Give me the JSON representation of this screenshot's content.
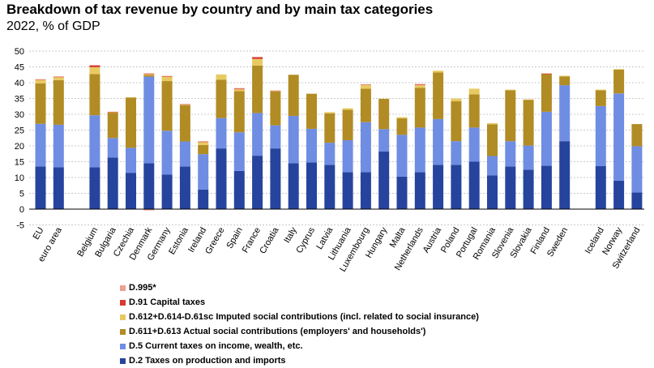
{
  "title": "Breakdown of tax revenue by country and by main tax categories",
  "subtitle": "2022, % of GDP",
  "chart_data": {
    "type": "bar",
    "stacked": true,
    "ylim": [
      -5,
      50
    ],
    "yticks": [
      "-5",
      "0",
      "5",
      "10",
      "15",
      "20",
      "25",
      "30",
      "35",
      "40",
      "45",
      "50"
    ],
    "grid": "horizontal dashed",
    "legend_placement": "bottom",
    "groups": [
      [
        "EU",
        "euro area"
      ],
      [
        "Belgium",
        "Bulgaria",
        "Czechia",
        "Denmark",
        "Germany",
        "Estonia",
        "Ireland",
        "Greece",
        "Spain",
        "France",
        "Croatia",
        "Italy",
        "Cyprus",
        "Latvia",
        "Lithuania",
        "Luxembourg",
        "Hungary",
        "Malta",
        "Netherlands",
        "Austria",
        "Poland",
        "Portugal",
        "Romania",
        "Slovenia",
        "Slovakia",
        "Finland",
        "Sweden"
      ],
      [
        "Iceland",
        "Norway",
        "Switzerland"
      ]
    ],
    "series": [
      {
        "name": "D.2 Taxes on production and imports",
        "color": "#26449e",
        "values": [
          13.5,
          13.2,
          13.2,
          16.3,
          11.5,
          14.5,
          10.9,
          13.5,
          6.2,
          19.2,
          12.1,
          16.9,
          19.2,
          14.5,
          14.8,
          14.0,
          11.7,
          11.7,
          18.2,
          10.3,
          11.7,
          14.0,
          14.0,
          15.0,
          10.7,
          13.5,
          12.5,
          13.7,
          21.5,
          13.6,
          9.0,
          5.3
        ]
      },
      {
        "name": "D.5 Current taxes on income, wealth, etc.",
        "color": "#6f8de2",
        "values": [
          13.5,
          13.5,
          16.5,
          6.2,
          7.9,
          27.4,
          13.9,
          7.9,
          11.2,
          9.6,
          12.2,
          13.5,
          7.3,
          15.0,
          10.6,
          7.0,
          10.1,
          15.8,
          7.1,
          13.2,
          14.1,
          14.5,
          7.5,
          10.8,
          6.1,
          8.0,
          7.6,
          17.1,
          17.7,
          19.0,
          27.6,
          14.6
        ]
      },
      {
        "name": "D.611+D.613 Actual social contributions (employers' and households')",
        "color": "#b18c24",
        "values": [
          12.8,
          14.1,
          13.0,
          8.0,
          15.9,
          0.5,
          15.7,
          11.5,
          2.9,
          12.1,
          13.0,
          15.0,
          10.7,
          13.0,
          11.1,
          9.3,
          9.6,
          10.6,
          9.6,
          5.2,
          12.6,
          14.7,
          12.6,
          10.5,
          10.0,
          16.1,
          14.5,
          11.9,
          2.8,
          5.0,
          7.5,
          7.0
        ]
      },
      {
        "name": "D.612+D.614-D.61sc Imputed social contributions (incl. related to social insurance)",
        "color": "#e8ca62",
        "values": [
          1.1,
          1.0,
          2.2,
          0.2,
          0.1,
          0.3,
          1.4,
          0.2,
          0.9,
          1.7,
          0.6,
          2.1,
          0.2,
          0.0,
          0.0,
          0.4,
          0.5,
          1.2,
          0.0,
          0.4,
          0.8,
          0.6,
          0.9,
          1.8,
          0.4,
          0.2,
          0.1,
          0.0,
          0.2,
          0.2,
          0.2,
          0.0
        ]
      },
      {
        "name": "D.91 Capital taxes",
        "color": "#d63a31",
        "values": [
          0.1,
          0.1,
          0.6,
          0.1,
          0.0,
          0.2,
          0.2,
          0.1,
          0.2,
          0.0,
          0.2,
          0.6,
          0.1,
          0.0,
          0.0,
          0.0,
          0.0,
          0.1,
          0.0,
          0.0,
          0.2,
          0.0,
          0.0,
          0.0,
          0.0,
          0.0,
          0.0,
          0.2,
          0.0,
          0.0,
          0.0,
          0.0
        ]
      },
      {
        "name": "D.995*",
        "color": "#f19e92",
        "values": [
          0.1,
          0.1,
          0.0,
          0.0,
          0.0,
          -0.4,
          0.0,
          0.0,
          0.0,
          0.0,
          0.2,
          -0.2,
          0.0,
          0.0,
          0.0,
          0.0,
          0.0,
          0.0,
          0.0,
          0.0,
          0.2,
          0.0,
          0.0,
          0.0,
          0.0,
          0.0,
          0.0,
          0.0,
          0.0,
          0.0,
          0.0,
          0.0
        ]
      }
    ]
  }
}
